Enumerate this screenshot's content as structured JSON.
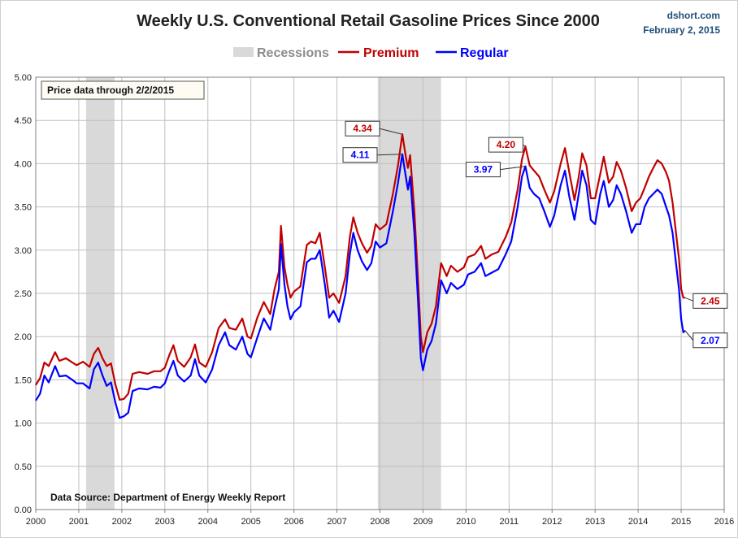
{
  "chart_data": {
    "type": "line",
    "title": "Weekly U.S. Conventional Retail Gasoline Prices Since 2000",
    "credit": {
      "site": "dshort.com",
      "date": "February 2, 2015"
    },
    "xlabel": "",
    "ylabel": "",
    "xlim": [
      2000,
      2016
    ],
    "ylim": [
      0,
      5
    ],
    "x_ticks": [
      "2000",
      "2001",
      "2002",
      "2003",
      "2004",
      "2005",
      "2006",
      "2007",
      "2008",
      "2009",
      "2010",
      "2011",
      "2012",
      "2013",
      "2014",
      "2015",
      "2016"
    ],
    "y_ticks": [
      "0.00",
      "0.50",
      "1.00",
      "1.50",
      "2.00",
      "2.50",
      "3.00",
      "3.50",
      "4.00",
      "4.50",
      "5.00"
    ],
    "grid": true,
    "legend": [
      {
        "label": "Recessions",
        "color": "#d9d9d9"
      },
      {
        "label": "Premium",
        "color": "#c00000"
      },
      {
        "label": "Regular",
        "color": "#0000ff"
      }
    ],
    "recessions": [
      {
        "start": 2001.17,
        "end": 2001.83
      },
      {
        "start": 2007.95,
        "end": 2009.42
      }
    ],
    "series": [
      {
        "name": "Premium",
        "color": "#c00000",
        "points": [
          [
            2000.0,
            1.44
          ],
          [
            2000.1,
            1.52
          ],
          [
            2000.2,
            1.7
          ],
          [
            2000.3,
            1.66
          ],
          [
            2000.45,
            1.82
          ],
          [
            2000.55,
            1.72
          ],
          [
            2000.7,
            1.75
          ],
          [
            2000.85,
            1.7
          ],
          [
            2000.95,
            1.67
          ],
          [
            2001.1,
            1.71
          ],
          [
            2001.25,
            1.65
          ],
          [
            2001.35,
            1.8
          ],
          [
            2001.45,
            1.87
          ],
          [
            2001.55,
            1.75
          ],
          [
            2001.65,
            1.66
          ],
          [
            2001.75,
            1.69
          ],
          [
            2001.85,
            1.45
          ],
          [
            2001.95,
            1.27
          ],
          [
            2002.05,
            1.28
          ],
          [
            2002.15,
            1.34
          ],
          [
            2002.25,
            1.57
          ],
          [
            2002.4,
            1.59
          ],
          [
            2002.6,
            1.57
          ],
          [
            2002.75,
            1.6
          ],
          [
            2002.9,
            1.6
          ],
          [
            2003.0,
            1.64
          ],
          [
            2003.1,
            1.78
          ],
          [
            2003.2,
            1.9
          ],
          [
            2003.3,
            1.72
          ],
          [
            2003.45,
            1.65
          ],
          [
            2003.6,
            1.76
          ],
          [
            2003.7,
            1.91
          ],
          [
            2003.8,
            1.7
          ],
          [
            2003.95,
            1.65
          ],
          [
            2004.1,
            1.82
          ],
          [
            2004.25,
            2.1
          ],
          [
            2004.4,
            2.2
          ],
          [
            2004.5,
            2.1
          ],
          [
            2004.65,
            2.08
          ],
          [
            2004.8,
            2.21
          ],
          [
            2004.92,
            2.0
          ],
          [
            2005.0,
            1.98
          ],
          [
            2005.15,
            2.22
          ],
          [
            2005.3,
            2.4
          ],
          [
            2005.45,
            2.26
          ],
          [
            2005.55,
            2.55
          ],
          [
            2005.65,
            2.75
          ],
          [
            2005.7,
            3.28
          ],
          [
            2005.78,
            2.8
          ],
          [
            2005.85,
            2.6
          ],
          [
            2005.92,
            2.45
          ],
          [
            2006.0,
            2.52
          ],
          [
            2006.15,
            2.58
          ],
          [
            2006.3,
            3.06
          ],
          [
            2006.4,
            3.1
          ],
          [
            2006.5,
            3.08
          ],
          [
            2006.6,
            3.2
          ],
          [
            2006.72,
            2.8
          ],
          [
            2006.82,
            2.45
          ],
          [
            2006.92,
            2.5
          ],
          [
            2007.05,
            2.39
          ],
          [
            2007.2,
            2.7
          ],
          [
            2007.3,
            3.15
          ],
          [
            2007.38,
            3.38
          ],
          [
            2007.48,
            3.2
          ],
          [
            2007.58,
            3.08
          ],
          [
            2007.7,
            2.97
          ],
          [
            2007.8,
            3.05
          ],
          [
            2007.9,
            3.3
          ],
          [
            2008.0,
            3.24
          ],
          [
            2008.15,
            3.3
          ],
          [
            2008.3,
            3.65
          ],
          [
            2008.42,
            3.98
          ],
          [
            2008.52,
            4.34
          ],
          [
            2008.6,
            4.08
          ],
          [
            2008.65,
            3.95
          ],
          [
            2008.7,
            4.1
          ],
          [
            2008.8,
            3.45
          ],
          [
            2008.88,
            2.7
          ],
          [
            2008.95,
            2.0
          ],
          [
            2009.0,
            1.82
          ],
          [
            2009.1,
            2.05
          ],
          [
            2009.2,
            2.15
          ],
          [
            2009.3,
            2.35
          ],
          [
            2009.42,
            2.85
          ],
          [
            2009.55,
            2.7
          ],
          [
            2009.65,
            2.82
          ],
          [
            2009.8,
            2.75
          ],
          [
            2009.95,
            2.8
          ],
          [
            2010.05,
            2.92
          ],
          [
            2010.2,
            2.95
          ],
          [
            2010.35,
            3.05
          ],
          [
            2010.45,
            2.9
          ],
          [
            2010.6,
            2.95
          ],
          [
            2010.75,
            2.98
          ],
          [
            2010.92,
            3.15
          ],
          [
            2011.05,
            3.32
          ],
          [
            2011.2,
            3.7
          ],
          [
            2011.3,
            4.05
          ],
          [
            2011.38,
            4.2
          ],
          [
            2011.48,
            3.98
          ],
          [
            2011.58,
            3.92
          ],
          [
            2011.7,
            3.85
          ],
          [
            2011.82,
            3.7
          ],
          [
            2011.95,
            3.55
          ],
          [
            2012.05,
            3.68
          ],
          [
            2012.2,
            4.0
          ],
          [
            2012.3,
            4.18
          ],
          [
            2012.4,
            3.9
          ],
          [
            2012.52,
            3.58
          ],
          [
            2012.62,
            3.85
          ],
          [
            2012.7,
            4.12
          ],
          [
            2012.8,
            3.98
          ],
          [
            2012.9,
            3.6
          ],
          [
            2013.0,
            3.6
          ],
          [
            2013.12,
            3.88
          ],
          [
            2013.2,
            4.08
          ],
          [
            2013.32,
            3.78
          ],
          [
            2013.42,
            3.85
          ],
          [
            2013.5,
            4.02
          ],
          [
            2013.6,
            3.92
          ],
          [
            2013.72,
            3.72
          ],
          [
            2013.85,
            3.45
          ],
          [
            2013.95,
            3.55
          ],
          [
            2014.05,
            3.6
          ],
          [
            2014.15,
            3.72
          ],
          [
            2014.25,
            3.85
          ],
          [
            2014.35,
            3.95
          ],
          [
            2014.45,
            4.04
          ],
          [
            2014.55,
            4.0
          ],
          [
            2014.65,
            3.9
          ],
          [
            2014.72,
            3.8
          ],
          [
            2014.8,
            3.55
          ],
          [
            2014.88,
            3.2
          ],
          [
            2014.95,
            2.9
          ],
          [
            2015.0,
            2.55
          ],
          [
            2015.05,
            2.45
          ],
          [
            2015.09,
            2.45
          ]
        ]
      },
      {
        "name": "Regular",
        "color": "#0000ff",
        "points": [
          [
            2000.0,
            1.26
          ],
          [
            2000.1,
            1.34
          ],
          [
            2000.2,
            1.55
          ],
          [
            2000.3,
            1.47
          ],
          [
            2000.45,
            1.66
          ],
          [
            2000.55,
            1.54
          ],
          [
            2000.7,
            1.55
          ],
          [
            2000.85,
            1.5
          ],
          [
            2000.95,
            1.46
          ],
          [
            2001.1,
            1.46
          ],
          [
            2001.25,
            1.4
          ],
          [
            2001.35,
            1.62
          ],
          [
            2001.45,
            1.7
          ],
          [
            2001.55,
            1.55
          ],
          [
            2001.65,
            1.43
          ],
          [
            2001.75,
            1.47
          ],
          [
            2001.85,
            1.24
          ],
          [
            2001.95,
            1.06
          ],
          [
            2002.05,
            1.08
          ],
          [
            2002.15,
            1.12
          ],
          [
            2002.25,
            1.37
          ],
          [
            2002.4,
            1.4
          ],
          [
            2002.6,
            1.39
          ],
          [
            2002.75,
            1.42
          ],
          [
            2002.9,
            1.41
          ],
          [
            2003.0,
            1.46
          ],
          [
            2003.1,
            1.6
          ],
          [
            2003.2,
            1.72
          ],
          [
            2003.3,
            1.55
          ],
          [
            2003.45,
            1.48
          ],
          [
            2003.6,
            1.55
          ],
          [
            2003.7,
            1.74
          ],
          [
            2003.8,
            1.55
          ],
          [
            2003.95,
            1.47
          ],
          [
            2004.1,
            1.62
          ],
          [
            2004.25,
            1.9
          ],
          [
            2004.4,
            2.05
          ],
          [
            2004.5,
            1.9
          ],
          [
            2004.65,
            1.85
          ],
          [
            2004.8,
            2.0
          ],
          [
            2004.92,
            1.8
          ],
          [
            2005.0,
            1.76
          ],
          [
            2005.15,
            1.99
          ],
          [
            2005.3,
            2.21
          ],
          [
            2005.45,
            2.08
          ],
          [
            2005.55,
            2.33
          ],
          [
            2005.65,
            2.55
          ],
          [
            2005.7,
            3.07
          ],
          [
            2005.78,
            2.6
          ],
          [
            2005.85,
            2.35
          ],
          [
            2005.92,
            2.2
          ],
          [
            2006.0,
            2.28
          ],
          [
            2006.15,
            2.35
          ],
          [
            2006.3,
            2.86
          ],
          [
            2006.4,
            2.9
          ],
          [
            2006.5,
            2.9
          ],
          [
            2006.6,
            3.0
          ],
          [
            2006.72,
            2.6
          ],
          [
            2006.82,
            2.22
          ],
          [
            2006.92,
            2.3
          ],
          [
            2007.05,
            2.17
          ],
          [
            2007.2,
            2.5
          ],
          [
            2007.3,
            2.95
          ],
          [
            2007.38,
            3.2
          ],
          [
            2007.48,
            3.0
          ],
          [
            2007.58,
            2.87
          ],
          [
            2007.7,
            2.77
          ],
          [
            2007.8,
            2.85
          ],
          [
            2007.9,
            3.1
          ],
          [
            2008.0,
            3.03
          ],
          [
            2008.15,
            3.08
          ],
          [
            2008.3,
            3.45
          ],
          [
            2008.42,
            3.78
          ],
          [
            2008.52,
            4.11
          ],
          [
            2008.6,
            3.85
          ],
          [
            2008.65,
            3.7
          ],
          [
            2008.7,
            3.85
          ],
          [
            2008.8,
            3.2
          ],
          [
            2008.88,
            2.45
          ],
          [
            2008.95,
            1.75
          ],
          [
            2009.0,
            1.61
          ],
          [
            2009.1,
            1.85
          ],
          [
            2009.2,
            1.95
          ],
          [
            2009.3,
            2.15
          ],
          [
            2009.42,
            2.65
          ],
          [
            2009.55,
            2.5
          ],
          [
            2009.65,
            2.62
          ],
          [
            2009.8,
            2.55
          ],
          [
            2009.95,
            2.6
          ],
          [
            2010.05,
            2.72
          ],
          [
            2010.2,
            2.75
          ],
          [
            2010.35,
            2.85
          ],
          [
            2010.45,
            2.7
          ],
          [
            2010.6,
            2.74
          ],
          [
            2010.75,
            2.78
          ],
          [
            2010.92,
            2.95
          ],
          [
            2011.05,
            3.1
          ],
          [
            2011.2,
            3.5
          ],
          [
            2011.3,
            3.85
          ],
          [
            2011.38,
            3.97
          ],
          [
            2011.48,
            3.72
          ],
          [
            2011.58,
            3.65
          ],
          [
            2011.7,
            3.6
          ],
          [
            2011.82,
            3.45
          ],
          [
            2011.95,
            3.27
          ],
          [
            2012.05,
            3.4
          ],
          [
            2012.2,
            3.75
          ],
          [
            2012.3,
            3.92
          ],
          [
            2012.4,
            3.62
          ],
          [
            2012.52,
            3.35
          ],
          [
            2012.62,
            3.65
          ],
          [
            2012.7,
            3.92
          ],
          [
            2012.8,
            3.75
          ],
          [
            2012.9,
            3.35
          ],
          [
            2013.0,
            3.3
          ],
          [
            2013.12,
            3.65
          ],
          [
            2013.2,
            3.8
          ],
          [
            2013.32,
            3.5
          ],
          [
            2013.42,
            3.58
          ],
          [
            2013.5,
            3.75
          ],
          [
            2013.6,
            3.65
          ],
          [
            2013.72,
            3.45
          ],
          [
            2013.85,
            3.2
          ],
          [
            2013.95,
            3.3
          ],
          [
            2014.05,
            3.3
          ],
          [
            2014.15,
            3.5
          ],
          [
            2014.25,
            3.6
          ],
          [
            2014.35,
            3.65
          ],
          [
            2014.45,
            3.7
          ],
          [
            2014.55,
            3.65
          ],
          [
            2014.65,
            3.5
          ],
          [
            2014.72,
            3.4
          ],
          [
            2014.8,
            3.2
          ],
          [
            2014.88,
            2.85
          ],
          [
            2014.95,
            2.55
          ],
          [
            2015.0,
            2.2
          ],
          [
            2015.05,
            2.05
          ],
          [
            2015.09,
            2.07
          ]
        ]
      }
    ],
    "callouts": [
      {
        "label": "4.34",
        "series": "Premium",
        "x": 2008.52,
        "y": 4.34
      },
      {
        "label": "4.11",
        "series": "Regular",
        "x": 2008.52,
        "y": 4.11
      },
      {
        "label": "4.20",
        "series": "Premium",
        "x": 2011.38,
        "y": 4.2
      },
      {
        "label": "3.97",
        "series": "Regular",
        "x": 2011.38,
        "y": 3.97
      },
      {
        "label": "2.45",
        "series": "Premium",
        "x": 2015.09,
        "y": 2.45
      },
      {
        "label": "2.07",
        "series": "Regular",
        "x": 2015.09,
        "y": 2.07
      }
    ],
    "notes": {
      "price_through": "Price data through 2/2/2015",
      "source": "Data Source: Department of Energy Weekly Report"
    }
  }
}
